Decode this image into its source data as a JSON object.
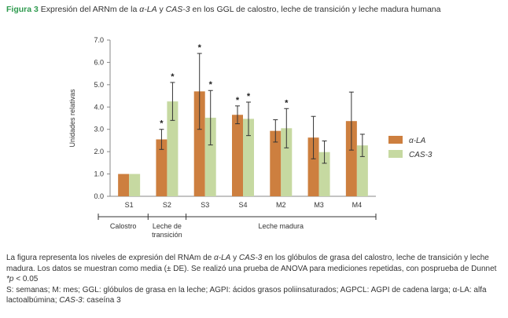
{
  "caption": {
    "label": "Figura 3",
    "text_before": " Expresión del ARNm de la ",
    "alpha": "α-LA",
    "and": " y ",
    "cas": "CAS-3",
    "text_after": " en los GGL de calostro, leche de transición y leche madura humana"
  },
  "chart_data": {
    "type": "bar",
    "ylabel": "Unidades relativas",
    "ylim": [
      0,
      7
    ],
    "yticks": [
      "0.0",
      "1.0",
      "2.0",
      "3.0",
      "4.0",
      "5.0",
      "6.0",
      "7.0"
    ],
    "categories": [
      "S1",
      "S2",
      "S3",
      "S4",
      "M2",
      "M3",
      "M4"
    ],
    "series": [
      {
        "name": "α-LA",
        "color": "#cd7f3f",
        "values": [
          1.0,
          2.55,
          4.7,
          3.65,
          2.93,
          2.63,
          3.37
        ],
        "errors": [
          0.0,
          0.45,
          1.7,
          0.4,
          0.5,
          0.95,
          1.3
        ],
        "sig": [
          false,
          true,
          true,
          true,
          false,
          false,
          false
        ]
      },
      {
        "name": "CAS-3",
        "color": "#c6d9a1",
        "values": [
          1.0,
          4.25,
          3.52,
          3.47,
          3.05,
          1.98,
          2.28
        ],
        "errors": [
          0.0,
          0.85,
          1.22,
          0.75,
          0.88,
          0.5,
          0.5
        ],
        "sig": [
          false,
          true,
          true,
          true,
          true,
          false,
          false
        ]
      }
    ],
    "sig_marker": "*",
    "groups": [
      {
        "label": "Calostro",
        "from": 0,
        "to": 0
      },
      {
        "label": "Leche de\ntransición",
        "from": 1,
        "to": 1
      },
      {
        "label": "Leche madura",
        "from": 2,
        "to": 6
      }
    ],
    "legend_position": "right"
  },
  "notes": {
    "line1_a": "La figura representa los niveles de expresión del RNAm de ",
    "line1_alpha": "α-LA",
    "line1_b": " y ",
    "line1_cas": "CAS-3",
    "line1_c": " en los glóbulos de grasa del calostro, leche de transición y leche madura. Los datos se muestran como media (± DE). Se realizó una prueba de ANOVA para mediciones repetidas, con posprueba de Dunnet",
    "line2_p": "*p",
    "line2_rest": " < 0.05",
    "line3": "S: semanas; M: mes; GGL: glóbulos de grasa en la leche; AGPI: ácidos grasos poliinsaturados; AGPCL: AGPI de cadena larga; α-LA: alfa lactoalbúmina; ",
    "line3_cas": "CAS-3",
    "line3_end": ": caseína 3"
  }
}
